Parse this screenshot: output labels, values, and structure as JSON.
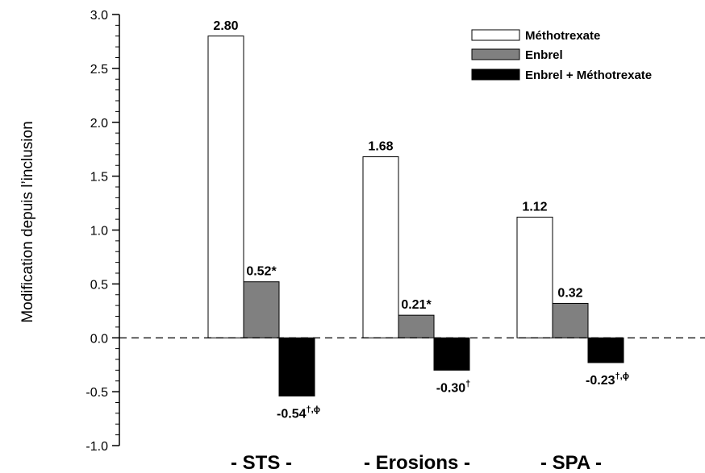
{
  "chart_data": {
    "type": "bar",
    "ylabel": "Modification depuis l’inclusion",
    "ylim": [
      -1.0,
      3.0
    ],
    "yticks": [
      "3.0",
      "2.5",
      "2.0",
      "1.5",
      "1.0",
      "0.5",
      "0.0",
      "-0.5",
      "-1.0"
    ],
    "categories": [
      "- STS -",
      "- Erosions -",
      "- SPA -"
    ],
    "zero_line": "dashed",
    "legend_position": "top-right",
    "series": [
      {
        "name": "Méthotrexate",
        "color": "#ffffff",
        "values": [
          2.8,
          1.68,
          1.12
        ],
        "labels": [
          {
            "text": "2.80",
            "sup": ""
          },
          {
            "text": "1.68",
            "sup": ""
          },
          {
            "text": "1.12",
            "sup": ""
          }
        ]
      },
      {
        "name": "Enbrel",
        "color": "#808080",
        "values": [
          0.52,
          0.21,
          0.32
        ],
        "labels": [
          {
            "text": "0.52*",
            "sup": ""
          },
          {
            "text": "0.21*",
            "sup": ""
          },
          {
            "text": "0.32",
            "sup": ""
          }
        ]
      },
      {
        "name": "Enbrel + Méthotrexate",
        "color": "#000000",
        "values": [
          -0.54,
          -0.3,
          -0.23
        ],
        "labels": [
          {
            "text": "-0.54",
            "sup": "†,ϕ"
          },
          {
            "text": "-0.30",
            "sup": "†"
          },
          {
            "text": "-0.23",
            "sup": "†,ϕ"
          }
        ]
      }
    ]
  }
}
